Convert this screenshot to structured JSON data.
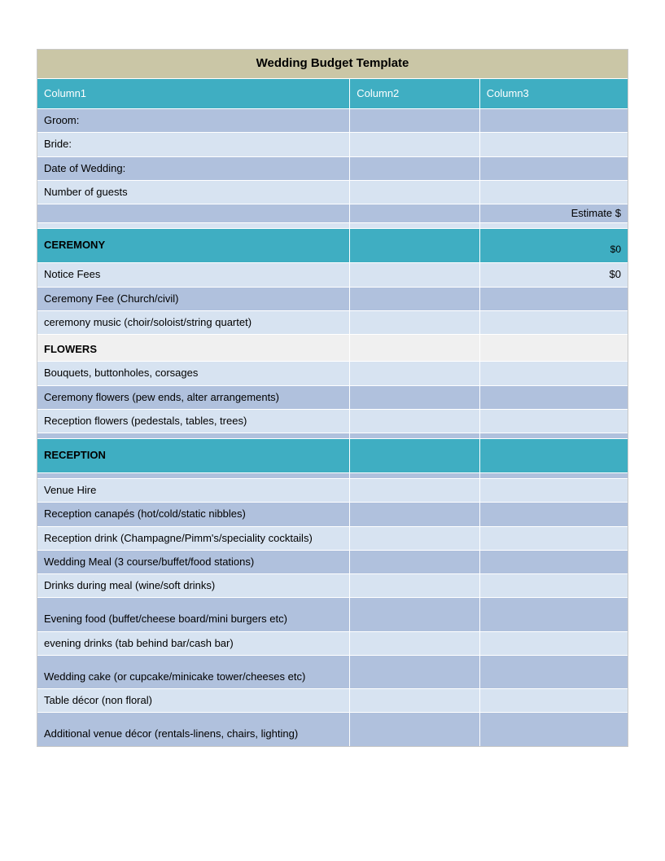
{
  "title": "Wedding Budget Template",
  "columns": {
    "c1": "Column1",
    "c2": "Column2",
    "c3": "Column3"
  },
  "info": {
    "groom": "Groom:",
    "bride": "Bride:",
    "date": "Date of Wedding:",
    "guests": "Number of guests",
    "estimate_label": "Estimate $"
  },
  "ceremony": {
    "header": "CEREMONY",
    "header_amount": "$0",
    "rows": [
      {
        "label": "Notice Fees",
        "amount": "$0"
      },
      {
        "label": "Ceremony Fee (Church/civil)"
      },
      {
        "label": "ceremony music (choir/soloist/string quartet)"
      }
    ]
  },
  "flowers": {
    "header": "FLOWERS",
    "rows": [
      {
        "label": "Bouquets, buttonholes, corsages"
      },
      {
        "label": "Ceremony flowers (pew ends, alter arrangements)"
      },
      {
        "label": "Reception flowers (pedestals, tables, trees)"
      }
    ]
  },
  "reception": {
    "header": "RECEPTION",
    "rows": [
      {
        "label": "Venue Hire"
      },
      {
        "label": "Reception canapés (hot/cold/static nibbles)"
      },
      {
        "label": "Reception drink (Champagne/Pimm's/speciality cocktails)"
      },
      {
        "label": "Wedding Meal (3 course/buffet/food stations)"
      },
      {
        "label": "Drinks during meal (wine/soft drinks)"
      },
      {
        "label": "Evening food (buffet/cheese board/mini burgers etc)"
      },
      {
        "label": "evening drinks (tab behind bar/cash bar)"
      },
      {
        "label": "Wedding cake (or cupcake/minicake tower/cheeses etc)"
      },
      {
        "label": "Table décor (non floral)"
      },
      {
        "label": "Additional venue décor (rentals-linens, chairs, lighting)"
      }
    ]
  },
  "colors": {
    "title_bg": "#cac6a6",
    "header_bg": "#3faec2",
    "light_row": "#d7e3f1",
    "mid_row": "#b0c1dd",
    "flowers_bg": "#f0f0f0",
    "border": "#ffffff"
  }
}
